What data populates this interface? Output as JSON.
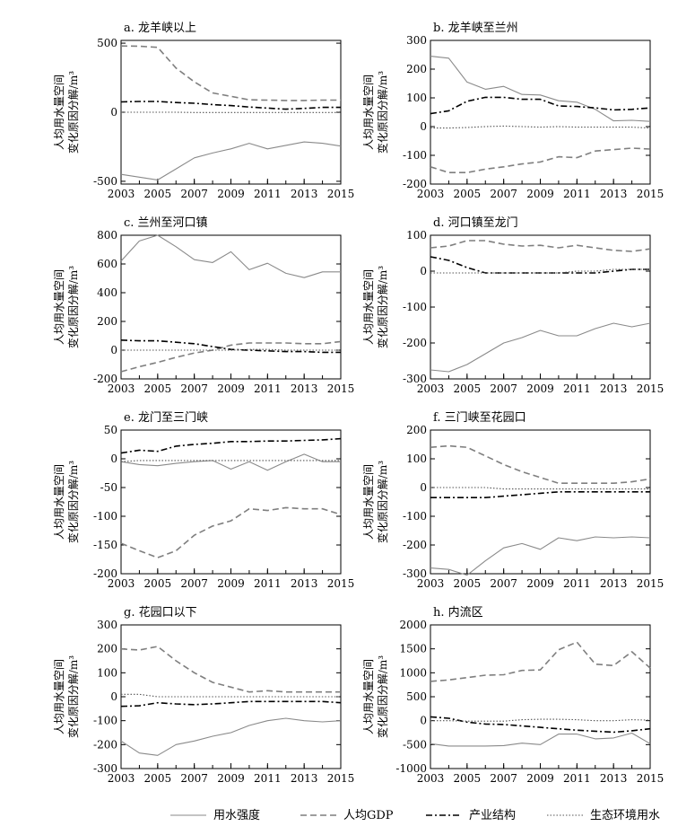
{
  "figure": {
    "ylabel_lines": [
      "人均用水量空间",
      "变化原因分解/m³"
    ],
    "legend": [
      {
        "label": "用水强度",
        "style": "solid"
      },
      {
        "label": "人均GDP",
        "style": "dashed"
      },
      {
        "label": "产业结构",
        "style": "dashdot"
      },
      {
        "label": "生态环境用水",
        "style": "dotted"
      }
    ]
  },
  "chart_data": [
    {
      "type": "line",
      "title": "a. 龙羊峡以上",
      "x": [
        2003,
        2004,
        2005,
        2006,
        2007,
        2008,
        2009,
        2010,
        2011,
        2012,
        2013,
        2014,
        2015
      ],
      "xticks": [
        2003,
        2005,
        2007,
        2009,
        2011,
        2013,
        2015
      ],
      "xlim": [
        2003,
        2015
      ],
      "ylim": [
        -520,
        520
      ],
      "yticks": [
        -500,
        0,
        500
      ],
      "series": [
        {
          "name": "用水强度",
          "values": [
            -450,
            -470,
            -490,
            -410,
            -330,
            -295,
            -265,
            -225,
            -265,
            -240,
            -215,
            -225,
            -245
          ]
        },
        {
          "name": "人均GDP",
          "values": [
            480,
            478,
            470,
            320,
            220,
            140,
            115,
            90,
            88,
            85,
            85,
            88,
            88
          ]
        },
        {
          "name": "产业结构",
          "values": [
            75,
            78,
            78,
            70,
            65,
            55,
            48,
            38,
            30,
            22,
            28,
            35,
            35
          ]
        },
        {
          "name": "生态环境用水",
          "values": [
            0,
            0,
            0,
            0,
            -2,
            -2,
            -2,
            -2,
            -2,
            -2,
            -2,
            -2,
            -2
          ]
        }
      ]
    },
    {
      "type": "line",
      "title": "b. 龙羊峡至兰州",
      "x": [
        2003,
        2004,
        2005,
        2006,
        2007,
        2008,
        2009,
        2010,
        2011,
        2012,
        2013,
        2014,
        2015
      ],
      "xticks": [
        2003,
        2005,
        2007,
        2009,
        2011,
        2013,
        2015
      ],
      "xlim": [
        2003,
        2015
      ],
      "ylim": [
        -200,
        300
      ],
      "yticks": [
        -200,
        -100,
        0,
        100,
        200,
        300
      ],
      "series": [
        {
          "name": "用水强度",
          "values": [
            245,
            238,
            155,
            130,
            140,
            112,
            110,
            90,
            85,
            60,
            20,
            22,
            18
          ]
        },
        {
          "name": "人均GDP",
          "values": [
            -140,
            -160,
            -160,
            -148,
            -140,
            -130,
            -123,
            -105,
            -108,
            -85,
            -80,
            -75,
            -78
          ]
        },
        {
          "name": "产业结构",
          "values": [
            45,
            55,
            88,
            102,
            102,
            95,
            95,
            72,
            70,
            65,
            58,
            60,
            65
          ]
        },
        {
          "name": "生态环境用水",
          "values": [
            -5,
            -5,
            -3,
            0,
            2,
            0,
            -2,
            0,
            -2,
            -2,
            -2,
            -2,
            -5
          ]
        }
      ]
    },
    {
      "type": "line",
      "title": "c. 兰州至河口镇",
      "x": [
        2003,
        2004,
        2005,
        2006,
        2007,
        2008,
        2009,
        2010,
        2011,
        2012,
        2013,
        2014,
        2015
      ],
      "xticks": [
        2003,
        2005,
        2007,
        2009,
        2011,
        2013,
        2015
      ],
      "xlim": [
        2003,
        2015
      ],
      "ylim": [
        -200,
        800
      ],
      "yticks": [
        -200,
        0,
        200,
        400,
        600,
        800
      ],
      "series": [
        {
          "name": "用水强度",
          "values": [
            620,
            760,
            800,
            720,
            630,
            610,
            685,
            560,
            605,
            535,
            505,
            545,
            545
          ]
        },
        {
          "name": "人均GDP",
          "values": [
            -150,
            -115,
            -85,
            -50,
            -20,
            0,
            35,
            50,
            50,
            50,
            45,
            45,
            60
          ]
        },
        {
          "name": "产业结构",
          "values": [
            70,
            65,
            65,
            55,
            45,
            25,
            5,
            0,
            -5,
            -10,
            -10,
            -15,
            -15
          ]
        },
        {
          "name": "生态环境用水",
          "values": [
            0,
            0,
            0,
            0,
            0,
            0,
            0,
            5,
            5,
            0,
            0,
            0,
            0
          ]
        }
      ]
    },
    {
      "type": "line",
      "title": "d. 河口镇至龙门",
      "x": [
        2003,
        2004,
        2005,
        2006,
        2007,
        2008,
        2009,
        2010,
        2011,
        2012,
        2013,
        2014,
        2015
      ],
      "xticks": [
        2003,
        2005,
        2007,
        2009,
        2011,
        2013,
        2015
      ],
      "xlim": [
        2003,
        2015
      ],
      "ylim": [
        -300,
        100
      ],
      "yticks": [
        -300,
        -200,
        -100,
        0,
        100
      ],
      "series": [
        {
          "name": "用水强度",
          "values": [
            -275,
            -280,
            -260,
            -230,
            -200,
            -185,
            -165,
            -180,
            -180,
            -160,
            -145,
            -155,
            -145
          ]
        },
        {
          "name": "人均GDP",
          "values": [
            65,
            70,
            85,
            85,
            75,
            70,
            72,
            65,
            72,
            65,
            58,
            55,
            62
          ]
        },
        {
          "name": "产业结构",
          "values": [
            40,
            30,
            10,
            -5,
            -5,
            -5,
            -5,
            -5,
            -5,
            -5,
            0,
            5,
            5
          ]
        },
        {
          "name": "生态环境用水",
          "values": [
            -5,
            -5,
            -5,
            -5,
            -5,
            -5,
            -5,
            -5,
            0,
            0,
            5,
            5,
            5
          ]
        }
      ]
    },
    {
      "type": "line",
      "title": "e. 龙门至三门峡",
      "x": [
        2003,
        2004,
        2005,
        2006,
        2007,
        2008,
        2009,
        2010,
        2011,
        2012,
        2013,
        2014,
        2015
      ],
      "xticks": [
        2003,
        2005,
        2007,
        2009,
        2011,
        2013,
        2015
      ],
      "xlim": [
        2003,
        2015
      ],
      "ylim": [
        -200,
        50
      ],
      "yticks": [
        -200,
        -150,
        -100,
        -50,
        0,
        50
      ],
      "series": [
        {
          "name": "用水强度",
          "values": [
            -5,
            -10,
            -12,
            -8,
            -5,
            -3,
            -18,
            -5,
            -20,
            -5,
            8,
            -5,
            -5
          ]
        },
        {
          "name": "人均GDP",
          "values": [
            -147,
            -160,
            -172,
            -160,
            -133,
            -117,
            -108,
            -87,
            -90,
            -85,
            -87,
            -87,
            -97
          ]
        },
        {
          "name": "产业结构",
          "values": [
            10,
            15,
            13,
            22,
            25,
            27,
            30,
            30,
            31,
            31,
            32,
            33,
            35
          ]
        },
        {
          "name": "生态环境用水",
          "values": [
            -5,
            -3,
            -3,
            -3,
            -3,
            -3,
            -3,
            -3,
            -3,
            -3,
            -3,
            -3,
            -3
          ]
        }
      ]
    },
    {
      "type": "line",
      "title": "f. 三门峡至花园口",
      "x": [
        2003,
        2004,
        2005,
        2006,
        2007,
        2008,
        2009,
        2010,
        2011,
        2012,
        2013,
        2014,
        2015
      ],
      "xticks": [
        2003,
        2005,
        2007,
        2009,
        2011,
        2013,
        2015
      ],
      "xlim": [
        2003,
        2015
      ],
      "ylim": [
        -300,
        200
      ],
      "yticks": [
        -300,
        -200,
        -100,
        0,
        100,
        200
      ],
      "series": [
        {
          "name": "用水强度",
          "values": [
            -280,
            -285,
            -305,
            -255,
            -210,
            -195,
            -215,
            -175,
            -185,
            -172,
            -175,
            -172,
            -175
          ]
        },
        {
          "name": "人均GDP",
          "values": [
            140,
            145,
            140,
            110,
            80,
            55,
            35,
            15,
            15,
            15,
            15,
            20,
            30
          ]
        },
        {
          "name": "产业结构",
          "values": [
            -35,
            -35,
            -35,
            -35,
            -30,
            -25,
            -20,
            -15,
            -15,
            -15,
            -15,
            -15,
            -15
          ]
        },
        {
          "name": "生态环境用水",
          "values": [
            0,
            0,
            0,
            0,
            -5,
            -5,
            -5,
            -5,
            -5,
            -5,
            -5,
            -5,
            -5
          ]
        }
      ]
    },
    {
      "type": "line",
      "title": "g. 花园口以下",
      "x": [
        2003,
        2004,
        2005,
        2006,
        2007,
        2008,
        2009,
        2010,
        2011,
        2012,
        2013,
        2014,
        2015
      ],
      "xticks": [
        2003,
        2005,
        2007,
        2009,
        2011,
        2013,
        2015
      ],
      "xlim": [
        2003,
        2015
      ],
      "ylim": [
        -300,
        300
      ],
      "yticks": [
        -300,
        -200,
        -100,
        0,
        100,
        200,
        300
      ],
      "series": [
        {
          "name": "用水强度",
          "values": [
            -185,
            -235,
            -245,
            -200,
            -185,
            -165,
            -150,
            -120,
            -100,
            -90,
            -100,
            -105,
            -100
          ]
        },
        {
          "name": "人均GDP",
          "values": [
            200,
            195,
            210,
            150,
            100,
            60,
            40,
            20,
            25,
            20,
            20,
            20,
            20
          ]
        },
        {
          "name": "产业结构",
          "values": [
            -40,
            -38,
            -25,
            -30,
            -33,
            -30,
            -25,
            -20,
            -20,
            -20,
            -20,
            -20,
            -25
          ]
        },
        {
          "name": "生态环境用水",
          "values": [
            10,
            10,
            0,
            0,
            0,
            0,
            0,
            0,
            0,
            0,
            0,
            0,
            0
          ]
        }
      ]
    },
    {
      "type": "line",
      "title": "h. 内流区",
      "x": [
        2003,
        2004,
        2005,
        2006,
        2007,
        2008,
        2009,
        2010,
        2011,
        2012,
        2013,
        2014,
        2015
      ],
      "xticks": [
        2003,
        2005,
        2007,
        2009,
        2011,
        2013,
        2015
      ],
      "xlim": [
        2003,
        2015
      ],
      "ylim": [
        -1000,
        2000
      ],
      "yticks": [
        -1000,
        -500,
        0,
        500,
        1000,
        1500,
        2000
      ],
      "series": [
        {
          "name": "用水强度",
          "values": [
            -480,
            -530,
            -530,
            -530,
            -520,
            -470,
            -500,
            -280,
            -280,
            -380,
            -360,
            -260,
            -480
          ]
        },
        {
          "name": "人均GDP",
          "values": [
            820,
            850,
            900,
            950,
            960,
            1050,
            1060,
            1480,
            1640,
            1180,
            1150,
            1440,
            1100
          ]
        },
        {
          "name": "产业结构",
          "values": [
            80,
            50,
            -30,
            -70,
            -80,
            -110,
            -140,
            -170,
            -200,
            -220,
            -240,
            -210,
            -170
          ]
        },
        {
          "name": "生态环境用水",
          "values": [
            0,
            0,
            -10,
            -10,
            -10,
            20,
            30,
            30,
            20,
            0,
            0,
            20,
            10
          ]
        }
      ]
    }
  ]
}
